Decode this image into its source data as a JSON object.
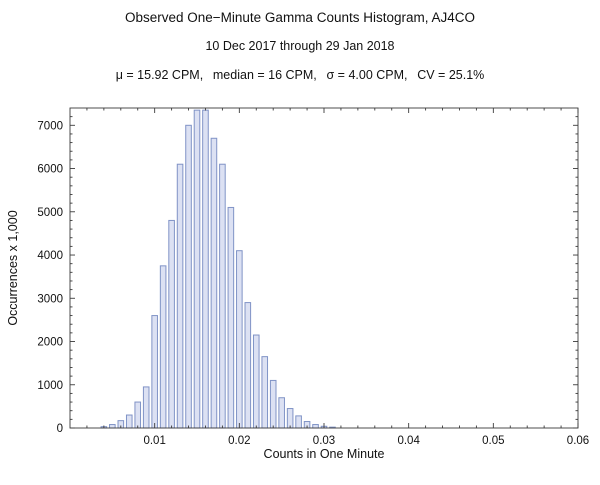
{
  "chart_data": {
    "type": "bar",
    "title": "Observed One−Minute Gamma Counts Histogram, AJ4CO",
    "subtitle": "10 Dec 2017 through 29 Jan 2018",
    "stats_line": "μ = 15.92 CPM,  median = 16 CPM,  σ = 4.00 CPM,  CV = 25.1%",
    "stats": {
      "mu_cpm": 15.92,
      "median_cpm": 16,
      "sigma_cpm": 4.0,
      "cv_percent": 25.1
    },
    "xlabel": "Counts in One Minute",
    "ylabel": "Occurrences x 1,000",
    "xlim": [
      0,
      0.06
    ],
    "ylim": [
      0,
      7400
    ],
    "grid": false,
    "legend": "none",
    "bin_width": 0.001,
    "x": [
      0.004,
      0.005,
      0.006,
      0.007,
      0.008,
      0.009,
      0.01,
      0.011,
      0.012,
      0.013,
      0.014,
      0.015,
      0.016,
      0.017,
      0.018,
      0.019,
      0.02,
      0.021,
      0.022,
      0.023,
      0.024,
      0.025,
      0.026,
      0.027,
      0.028,
      0.029,
      0.03,
      0.031
    ],
    "values": [
      30,
      80,
      170,
      300,
      600,
      950,
      2600,
      3750,
      4800,
      6100,
      7000,
      7350,
      7350,
      6700,
      6100,
      5100,
      4100,
      2900,
      2150,
      1650,
      1100,
      700,
      450,
      280,
      150,
      80,
      40,
      20
    ],
    "x_ticks": [
      0.01,
      0.02,
      0.03,
      0.04,
      0.05,
      0.06
    ],
    "x_tick_labels": [
      "0.01",
      "0.02",
      "0.03",
      "0.04",
      "0.05",
      "0.06"
    ],
    "x_minor_step": 0.002,
    "y_ticks": [
      0,
      1000,
      2000,
      3000,
      4000,
      5000,
      6000,
      7000
    ],
    "y_tick_labels": [
      "0",
      "1000",
      "2000",
      "3000",
      "4000",
      "5000",
      "6000",
      "7000"
    ],
    "y_minor_step": 200,
    "colors": {
      "bar_fill": "#dce1f3",
      "bar_edge": "#8093c6",
      "frame": "#3a3a3a",
      "text": "#111111",
      "background": "#ffffff"
    }
  }
}
